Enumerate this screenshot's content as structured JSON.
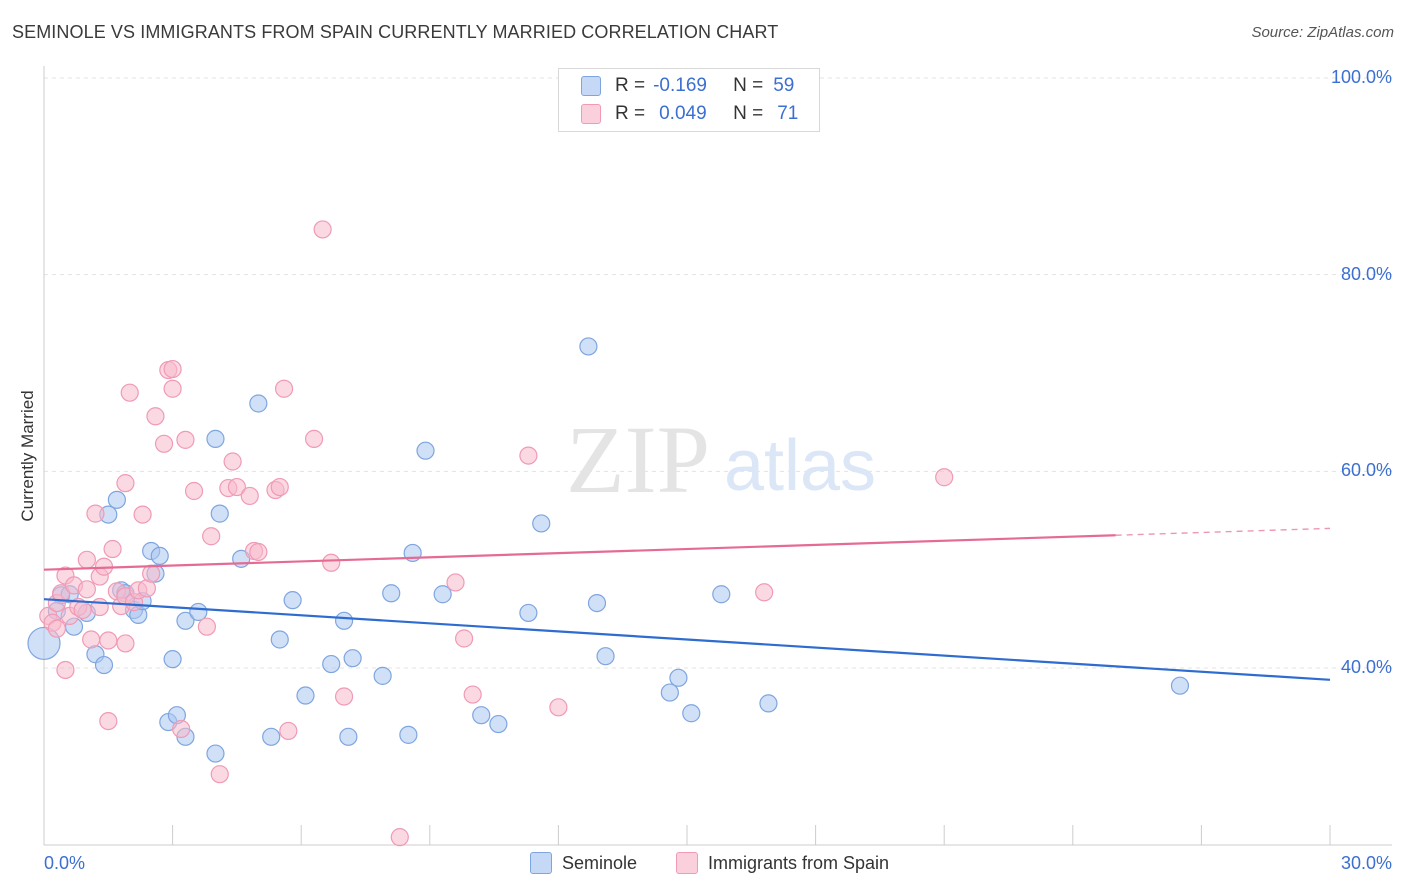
{
  "title": "SEMINOLE VS IMMIGRANTS FROM SPAIN CURRENTLY MARRIED CORRELATION CHART",
  "source": "Source: ZipAtlas.com",
  "watermark": {
    "zip": "ZIP",
    "atlas": "atlas"
  },
  "legend_top": {
    "row1": {
      "r_label": "R =",
      "r_value": "-0.169",
      "n_label": "N =",
      "n_value": "59"
    },
    "row2": {
      "r_label": "R =",
      "r_value": "0.049",
      "n_label": "N =",
      "n_value": "71"
    }
  },
  "chart_data": {
    "type": "scatter",
    "ylabel": "Currently Married",
    "xlim": [
      0,
      30
    ],
    "ylim": [
      22,
      100
    ],
    "x_tick_labels": [
      "0.0%",
      "30.0%"
    ],
    "y_ticks": [
      40,
      60,
      80,
      100
    ],
    "y_tick_labels": [
      "40.0%",
      "60.0%",
      "80.0%",
      "100.0%"
    ],
    "grid": true,
    "legend_placement": "top-center",
    "series": [
      {
        "name": "Seminole",
        "color": "#a9c7f1",
        "line_color": "#2f6ccf",
        "trend": {
          "x0": 0,
          "y0": 47.0,
          "x1": 30,
          "y1": 38.8,
          "solid_until": 30
        },
        "points": [
          [
            0.0,
            42.5
          ],
          [
            0.3,
            45.8
          ],
          [
            0.4,
            47.4
          ],
          [
            0.6,
            47.5
          ],
          [
            0.7,
            44.2
          ],
          [
            1.0,
            45.6
          ],
          [
            1.2,
            41.4
          ],
          [
            1.4,
            40.3
          ],
          [
            1.5,
            55.6
          ],
          [
            1.7,
            57.1
          ],
          [
            1.8,
            47.9
          ],
          [
            1.9,
            47.6
          ],
          [
            2.1,
            45.9
          ],
          [
            2.2,
            45.4
          ],
          [
            2.3,
            46.8
          ],
          [
            2.5,
            51.9
          ],
          [
            2.6,
            49.6
          ],
          [
            2.7,
            51.4
          ],
          [
            2.9,
            34.5
          ],
          [
            3.0,
            40.9
          ],
          [
            3.1,
            35.2
          ],
          [
            3.3,
            44.8
          ],
          [
            3.3,
            33.0
          ],
          [
            3.6,
            45.7
          ],
          [
            4.0,
            31.3
          ],
          [
            4.0,
            63.3
          ],
          [
            4.1,
            55.7
          ],
          [
            4.6,
            51.1
          ],
          [
            5.0,
            66.9
          ],
          [
            5.3,
            33.0
          ],
          [
            5.5,
            42.9
          ],
          [
            5.8,
            46.9
          ],
          [
            6.1,
            37.2
          ],
          [
            6.7,
            40.4
          ],
          [
            7.0,
            44.8
          ],
          [
            7.1,
            33.0
          ],
          [
            7.2,
            41.0
          ],
          [
            7.9,
            39.2
          ],
          [
            8.1,
            47.6
          ],
          [
            8.5,
            33.2
          ],
          [
            8.6,
            51.7
          ],
          [
            8.9,
            62.1
          ],
          [
            9.3,
            47.5
          ],
          [
            10.2,
            35.2
          ],
          [
            10.6,
            34.3
          ],
          [
            11.3,
            45.6
          ],
          [
            11.6,
            54.7
          ],
          [
            12.7,
            72.7
          ],
          [
            12.9,
            46.6
          ],
          [
            13.1,
            41.2
          ],
          [
            14.6,
            37.5
          ],
          [
            14.8,
            39.0
          ],
          [
            15.1,
            35.4
          ],
          [
            15.8,
            47.5
          ],
          [
            16.9,
            36.4
          ],
          [
            26.5,
            38.2
          ]
        ]
      },
      {
        "name": "Immigrants from Spain",
        "color": "#f7b9cc",
        "line_color": "#e56b93",
        "trend": {
          "x0": 0,
          "y0": 50.0,
          "x1": 30,
          "y1": 54.2,
          "solid_until": 25
        },
        "points": [
          [
            0.1,
            45.3
          ],
          [
            0.2,
            44.6
          ],
          [
            0.3,
            46.6
          ],
          [
            0.3,
            44.0
          ],
          [
            0.4,
            47.6
          ],
          [
            0.5,
            49.4
          ],
          [
            0.5,
            39.8
          ],
          [
            0.6,
            45.3
          ],
          [
            0.7,
            48.4
          ],
          [
            0.8,
            46.2
          ],
          [
            0.9,
            45.9
          ],
          [
            1.0,
            51.0
          ],
          [
            1.0,
            48.0
          ],
          [
            1.1,
            42.9
          ],
          [
            1.2,
            55.7
          ],
          [
            1.3,
            49.3
          ],
          [
            1.3,
            46.2
          ],
          [
            1.4,
            50.3
          ],
          [
            1.5,
            42.8
          ],
          [
            1.5,
            34.6
          ],
          [
            1.6,
            52.1
          ],
          [
            1.7,
            47.8
          ],
          [
            1.8,
            46.3
          ],
          [
            1.9,
            47.3
          ],
          [
            1.9,
            42.5
          ],
          [
            1.9,
            58.8
          ],
          [
            2.0,
            68.0
          ],
          [
            2.1,
            46.7
          ],
          [
            2.2,
            47.9
          ],
          [
            2.3,
            55.6
          ],
          [
            2.4,
            48.1
          ],
          [
            2.5,
            49.6
          ],
          [
            2.6,
            65.6
          ],
          [
            2.8,
            62.8
          ],
          [
            2.9,
            70.3
          ],
          [
            3.0,
            70.4
          ],
          [
            3.0,
            68.4
          ],
          [
            3.2,
            33.8
          ],
          [
            3.3,
            63.2
          ],
          [
            3.5,
            58.0
          ],
          [
            3.8,
            44.2
          ],
          [
            3.9,
            53.4
          ],
          [
            4.1,
            29.2
          ],
          [
            4.3,
            58.3
          ],
          [
            4.4,
            61.0
          ],
          [
            4.5,
            58.4
          ],
          [
            4.8,
            57.5
          ],
          [
            4.9,
            51.9
          ],
          [
            5.0,
            51.8
          ],
          [
            5.4,
            58.1
          ],
          [
            5.5,
            58.4
          ],
          [
            5.6,
            68.4
          ],
          [
            5.7,
            33.6
          ],
          [
            6.3,
            63.3
          ],
          [
            6.5,
            84.6
          ],
          [
            6.7,
            50.7
          ],
          [
            7.0,
            37.1
          ],
          [
            8.3,
            22.8
          ],
          [
            9.6,
            48.7
          ],
          [
            9.8,
            43.0
          ],
          [
            10.0,
            37.3
          ],
          [
            11.3,
            61.6
          ],
          [
            12.0,
            36.0
          ],
          [
            16.8,
            47.7
          ],
          [
            21.0,
            59.4
          ]
        ]
      }
    ]
  }
}
